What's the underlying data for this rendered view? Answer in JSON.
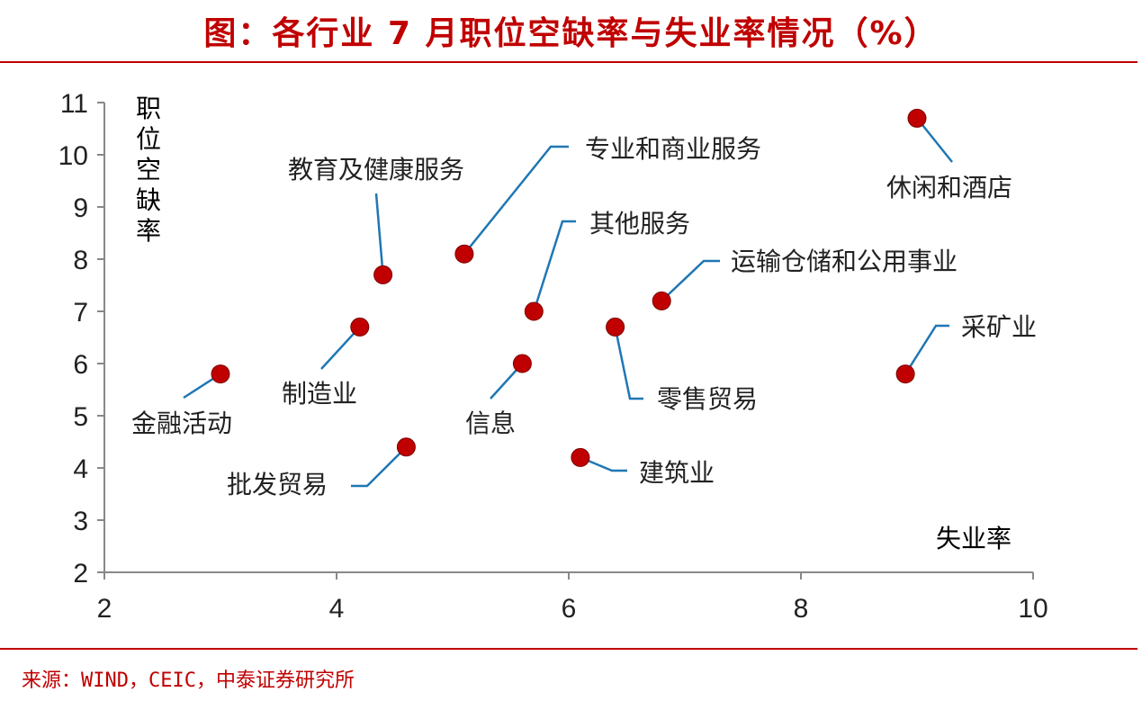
{
  "title": "图：各行业 7 月职位空缺率与失业率情况（%）",
  "source": "来源：WIND，CEIC，中泰证券研究所",
  "colors": {
    "accent": "#c00000",
    "point": "#c00000",
    "leader": "#1f77b4"
  },
  "chart_data": {
    "type": "scatter",
    "xlabel": "失业率",
    "ylabel": "职位空缺率",
    "xlim": [
      2,
      10
    ],
    "ylim": [
      2,
      11
    ],
    "xticks": [
      2,
      4,
      6,
      8,
      10
    ],
    "yticks": [
      2,
      3,
      4,
      5,
      6,
      7,
      8,
      9,
      10,
      11
    ],
    "grid": false,
    "points": [
      {
        "label": "休闲和酒店",
        "x": 9.0,
        "y": 10.7
      },
      {
        "label": "专业和商业服务",
        "x": 5.1,
        "y": 8.1
      },
      {
        "label": "教育及健康服务",
        "x": 4.4,
        "y": 7.7
      },
      {
        "label": "运输仓储和公用事业",
        "x": 6.8,
        "y": 7.2
      },
      {
        "label": "其他服务",
        "x": 5.7,
        "y": 7.0
      },
      {
        "label": "制造业",
        "x": 4.2,
        "y": 6.7
      },
      {
        "label": "零售贸易",
        "x": 6.4,
        "y": 6.7
      },
      {
        "label": "信息",
        "x": 5.6,
        "y": 6.0
      },
      {
        "label": "金融活动",
        "x": 3.0,
        "y": 5.8
      },
      {
        "label": "采矿业",
        "x": 8.9,
        "y": 5.8
      },
      {
        "label": "批发贸易",
        "x": 4.6,
        "y": 4.4
      },
      {
        "label": "建筑业",
        "x": 6.1,
        "y": 4.2
      }
    ]
  }
}
